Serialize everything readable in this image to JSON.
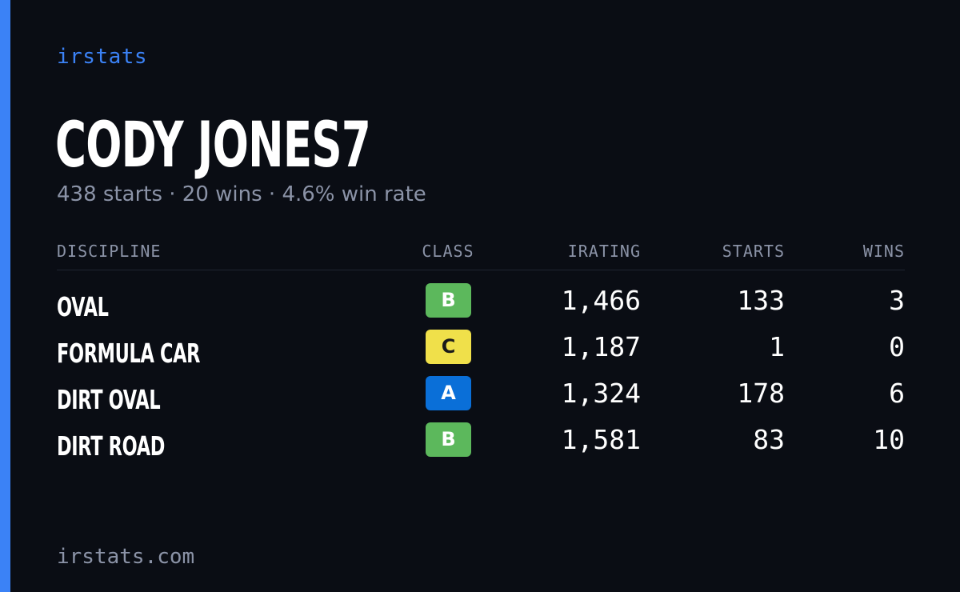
{
  "brand": "irstats",
  "driver": {
    "name": "CODY JONES7",
    "summary": "438 starts · 20 wins · 4.6% win rate"
  },
  "table": {
    "headers": {
      "discipline": "DISCIPLINE",
      "class": "CLASS",
      "irating": "IRATING",
      "starts": "STARTS",
      "wins": "WINS"
    },
    "rows": [
      {
        "discipline": "OVAL",
        "class": "B",
        "class_color": "#5cb85c",
        "class_text_color": "#ffffff",
        "irating": "1,466",
        "starts": "133",
        "wins": "3"
      },
      {
        "discipline": "FORMULA CAR",
        "class": "C",
        "class_color": "#f0e04a",
        "class_text_color": "#1a1a1a",
        "irating": "1,187",
        "starts": "1",
        "wins": "0"
      },
      {
        "discipline": "DIRT OVAL",
        "class": "A",
        "class_color": "#0a6fd8",
        "class_text_color": "#ffffff",
        "irating": "1,324",
        "starts": "178",
        "wins": "6"
      },
      {
        "discipline": "DIRT ROAD",
        "class": "B",
        "class_color": "#5cb85c",
        "class_text_color": "#ffffff",
        "irating": "1,581",
        "starts": "83",
        "wins": "10"
      }
    ]
  },
  "footer": "irstats.com",
  "colors": {
    "background": "#0a0d14",
    "accent": "#3b82f6",
    "muted": "#8b93a7"
  }
}
